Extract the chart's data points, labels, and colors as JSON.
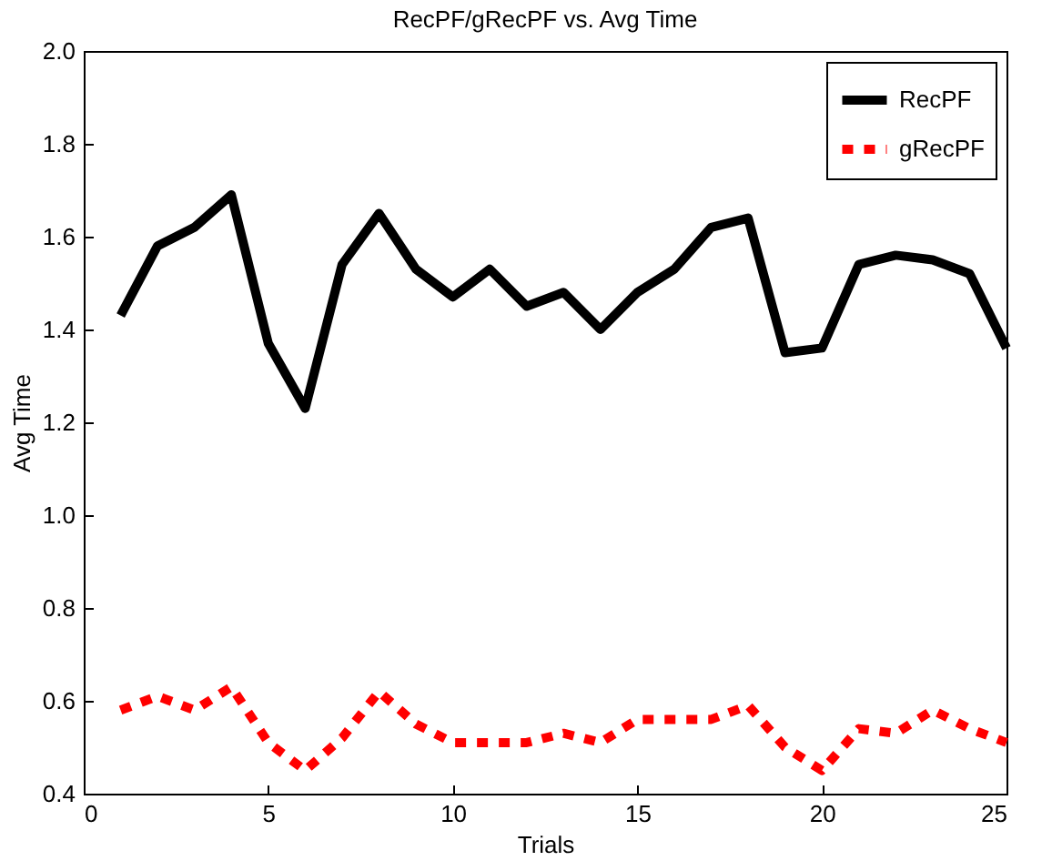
{
  "chart_data": {
    "type": "line",
    "title": "RecPF/gRecPF vs. Avg Time",
    "xlabel": "Trials",
    "ylabel": "Avg Time",
    "x": [
      1,
      2,
      3,
      4,
      5,
      6,
      7,
      8,
      9,
      10,
      11,
      12,
      13,
      14,
      15,
      16,
      17,
      18,
      19,
      20,
      21,
      22,
      23,
      24,
      25
    ],
    "series": [
      {
        "name": "RecPF",
        "color": "#000000",
        "line_style": "solid",
        "values": [
          1.43,
          1.58,
          1.62,
          1.69,
          1.37,
          1.23,
          1.54,
          1.65,
          1.53,
          1.47,
          1.53,
          1.45,
          1.48,
          1.4,
          1.48,
          1.53,
          1.62,
          1.64,
          1.35,
          1.36,
          1.54,
          1.56,
          1.55,
          1.52,
          1.36
        ]
      },
      {
        "name": "gRecPF",
        "color": "#ff0000",
        "line_style": "dotted",
        "values": [
          0.58,
          0.61,
          0.58,
          0.63,
          0.51,
          0.45,
          0.52,
          0.62,
          0.55,
          0.51,
          0.51,
          0.51,
          0.53,
          0.51,
          0.56,
          0.56,
          0.56,
          0.59,
          0.5,
          0.45,
          0.54,
          0.53,
          0.58,
          0.54,
          0.51
        ]
      }
    ],
    "xlim": [
      0,
      25
    ],
    "xticks": [
      0,
      5,
      10,
      15,
      20,
      25
    ],
    "ylim": [
      0.4,
      2
    ],
    "yticks": [
      0.4,
      0.6,
      0.8,
      {
        "value": 1,
        "label": "1.0"
      },
      1.2,
      1.4,
      1.6,
      1.8,
      {
        "value": 2,
        "label": "2.0"
      }
    ],
    "grid": false,
    "legend": "top right",
    "marker": "none"
  }
}
